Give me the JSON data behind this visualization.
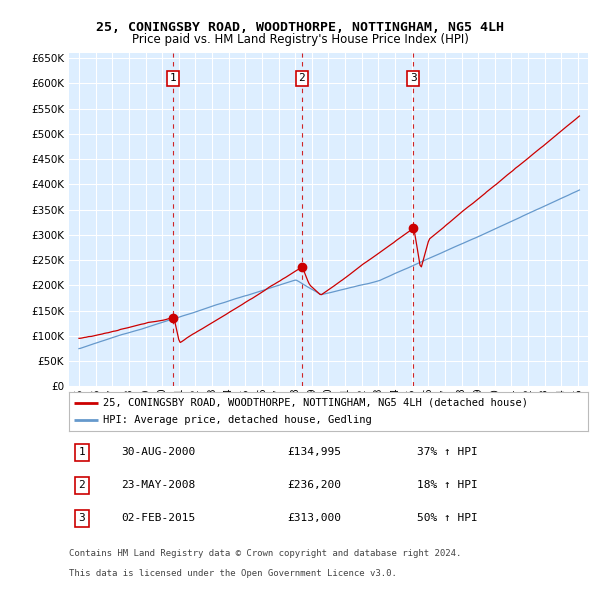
{
  "title": "25, CONINGSBY ROAD, WOODTHORPE, NOTTINGHAM, NG5 4LH",
  "subtitle": "Price paid vs. HM Land Registry's House Price Index (HPI)",
  "red_label": "25, CONINGSBY ROAD, WOODTHORPE, NOTTINGHAM, NG5 4LH (detached house)",
  "blue_label": "HPI: Average price, detached house, Gedling",
  "footer1": "Contains HM Land Registry data © Crown copyright and database right 2024.",
  "footer2": "This data is licensed under the Open Government Licence v3.0.",
  "transactions": [
    {
      "num": 1,
      "date": "30-AUG-2000",
      "price": "£134,995",
      "change": "37% ↑ HPI",
      "year": 2000.67
    },
    {
      "num": 2,
      "date": "23-MAY-2008",
      "price": "£236,200",
      "change": "18% ↑ HPI",
      "year": 2008.39
    },
    {
      "num": 3,
      "date": "02-FEB-2015",
      "price": "£313,000",
      "change": "50% ↑ HPI",
      "year": 2015.09
    }
  ],
  "transaction_values": [
    134995,
    236200,
    313000
  ],
  "ylim": [
    0,
    660000
  ],
  "yticks": [
    0,
    50000,
    100000,
    150000,
    200000,
    250000,
    300000,
    350000,
    400000,
    450000,
    500000,
    550000,
    600000,
    650000
  ],
  "red_color": "#cc0000",
  "blue_color": "#6699cc",
  "background_color": "#ddeeff",
  "grid_color": "#ffffff",
  "dashed_color": "#cc0000"
}
